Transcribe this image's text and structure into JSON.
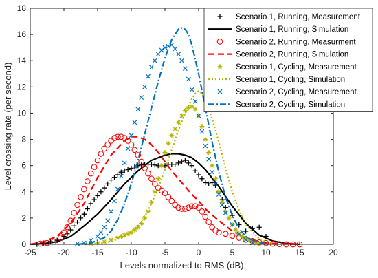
{
  "chart_data": {
    "type": "line",
    "xlabel": "Levels normalized to RMS (dB)",
    "ylabel": "Level crossing rate (per second)",
    "xlim": [
      -25,
      20
    ],
    "ylim": [
      0,
      18
    ],
    "xticks": [
      -25,
      -20,
      -15,
      -10,
      -5,
      0,
      5,
      10,
      15,
      20
    ],
    "yticks": [
      0,
      2,
      4,
      6,
      8,
      10,
      12,
      14,
      16,
      18
    ],
    "grid": false,
    "legend_position": "top-right",
    "series": [
      {
        "name": "Scenario 1, Running, Measurement",
        "style": "markers",
        "marker": "plus",
        "color": "#000000",
        "x": [
          -24,
          -23,
          -22,
          -21,
          -20,
          -19.5,
          -19,
          -18.5,
          -18,
          -17.5,
          -17,
          -16.5,
          -16,
          -15.5,
          -15,
          -14.5,
          -14,
          -13.5,
          -13,
          -12.5,
          -12,
          -11.5,
          -11,
          -10.5,
          -10,
          -9.5,
          -9,
          -8.5,
          -8,
          -7.5,
          -7,
          -6.5,
          -6,
          -5.5,
          -5,
          -4.5,
          -4,
          -3.5,
          -3,
          -2.5,
          -2,
          -1.5,
          -1,
          -0.5,
          0,
          0.5,
          1,
          1.5,
          2,
          2.5,
          3,
          3.5,
          4,
          5,
          6,
          7,
          8,
          9,
          10
        ],
        "y": [
          0,
          0.1,
          0.2,
          0.3,
          0.6,
          0.8,
          1.1,
          1.4,
          1.7,
          2,
          2.3,
          2.7,
          3.1,
          3.4,
          3.7,
          4,
          4.3,
          4.6,
          4.9,
          5.1,
          5.3,
          5.5,
          5.6,
          5.7,
          5.8,
          5.9,
          6,
          6.05,
          6.1,
          6.1,
          6.1,
          6.05,
          6,
          6,
          6,
          6.1,
          6.1,
          6.1,
          6.2,
          6.3,
          6.4,
          6.2,
          6,
          5.6,
          5.3,
          5,
          4.7,
          4.6,
          4.7,
          4.5,
          4,
          3.4,
          2.8,
          2.2,
          1.5,
          1,
          1.2,
          1.3,
          0.6
        ]
      },
      {
        "name": "Scenario 1, Running, Simulation",
        "style": "line",
        "dash": "solid",
        "color": "#000000",
        "x": [
          -25,
          -23,
          -21,
          -19,
          -17,
          -15,
          -13,
          -11,
          -9,
          -7,
          -5,
          -4,
          -3,
          -2,
          -1,
          0,
          1,
          3,
          5,
          7,
          9,
          11,
          13,
          15
        ],
        "y": [
          0,
          0.05,
          0.2,
          0.6,
          1.4,
          2.3,
          3.4,
          4.6,
          5.6,
          6.4,
          6.8,
          6.9,
          6.9,
          6.8,
          6.6,
          6.2,
          5.7,
          4.4,
          2.9,
          1.6,
          0.7,
          0.25,
          0.07,
          0
        ]
      },
      {
        "name": "Scenario 2, Running, Measurment",
        "style": "markers",
        "marker": "circle",
        "color": "#ff0000",
        "x": [
          -23.5,
          -22.5,
          -21.5,
          -20.5,
          -20,
          -19.5,
          -19,
          -18.5,
          -18,
          -17.5,
          -17,
          -16.5,
          -16,
          -15.5,
          -15,
          -14.5,
          -14,
          -13.5,
          -13,
          -12.5,
          -12,
          -11.5,
          -11,
          -10.5,
          -10,
          -9.5,
          -9,
          -8.5,
          -8,
          -7.5,
          -7,
          -6.5,
          -6,
          -5.5,
          -5,
          -4.5,
          -4,
          -3.5,
          -3,
          -2.5,
          -2,
          -1.5,
          -1,
          -0.5,
          0,
          0.5,
          1,
          1.5,
          2,
          2.5,
          3,
          4,
          5,
          6,
          7,
          8,
          9,
          10,
          11,
          12,
          13,
          14,
          15
        ],
        "y": [
          0.05,
          0.1,
          0.2,
          0.5,
          0.9,
          1.3,
          1.8,
          2.4,
          3,
          3.6,
          4.2,
          4.8,
          5.4,
          5.9,
          6.4,
          6.9,
          7.3,
          7.6,
          7.9,
          8.1,
          8.2,
          8.2,
          8.1,
          7.9,
          7.6,
          7.2,
          6.8,
          6.3,
          5.8,
          5.4,
          5,
          4.6,
          4.3,
          4.1,
          3.9,
          3.6,
          3.3,
          3,
          2.8,
          2.7,
          2.7,
          2.8,
          2.9,
          2.9,
          2.8,
          2.5,
          2.1,
          1.7,
          1.3,
          1.05,
          0.9,
          0.8,
          0.65,
          0.5,
          0.35,
          0.25,
          0.15,
          0.1,
          0.05,
          0.02,
          0,
          0,
          0
        ]
      },
      {
        "name": "Scenario 2, Running, Simulation",
        "style": "line",
        "dash": "dashed",
        "color": "#ff0000",
        "x": [
          -25,
          -23,
          -21,
          -19,
          -17,
          -15,
          -13,
          -11,
          -10,
          -9,
          -8,
          -7,
          -6,
          -5,
          -4,
          -3,
          -2,
          -1,
          0,
          1,
          3,
          5,
          7,
          9,
          11,
          13,
          15
        ],
        "y": [
          0,
          0.2,
          0.6,
          1.6,
          3.1,
          5.1,
          6.8,
          7.9,
          8.2,
          8.2,
          8,
          7.6,
          7,
          6.3,
          5.6,
          5,
          4.4,
          3.8,
          3.3,
          2.7,
          1.8,
          1,
          0.5,
          0.2,
          0.07,
          0.02,
          0
        ]
      },
      {
        "name": "Scenario 1, Cycling, Measurement",
        "style": "markers",
        "marker": "asterisk",
        "color": "#b5b500",
        "x": [
          -16,
          -15,
          -14,
          -13,
          -12,
          -11.5,
          -11,
          -10.5,
          -10,
          -9.5,
          -9,
          -8.5,
          -8,
          -7.5,
          -7,
          -6.5,
          -6,
          -5.5,
          -5,
          -4.5,
          -4,
          -3.5,
          -3,
          -2.5,
          -2,
          -1.5,
          -1,
          -0.5,
          0,
          0.5,
          1,
          1.5,
          2,
          2.5,
          3,
          3.5,
          4,
          4.5,
          5,
          5.5,
          6,
          6.5,
          7,
          7.5,
          8,
          8.5,
          9
        ],
        "y": [
          0.05,
          0.1,
          0.2,
          0.35,
          0.5,
          0.6,
          0.7,
          0.8,
          0.9,
          1.1,
          1.3,
          1.6,
          2,
          2.5,
          3.2,
          4,
          5,
          6,
          7,
          7.7,
          8.3,
          8.8,
          9.3,
          9.8,
          10.2,
          10.4,
          10.5,
          10.3,
          9.8,
          9,
          8,
          7,
          6,
          5,
          4,
          3.2,
          2.5,
          2,
          1.5,
          1.1,
          0.8,
          0.6,
          0.45,
          0.3,
          0.2,
          0.1,
          0.05
        ]
      },
      {
        "name": "Scenario 1, Cycling, Simulation",
        "style": "line",
        "dash": "dotted",
        "color": "#b5b500",
        "x": [
          -17,
          -15,
          -13,
          -11,
          -9,
          -8,
          -7,
          -6,
          -5,
          -4,
          -3,
          -2,
          -1,
          -0.5,
          0,
          0.5,
          1,
          2,
          3,
          4,
          5,
          6,
          7,
          9,
          11
        ],
        "y": [
          0,
          0.05,
          0.2,
          0.6,
          1.4,
          2.1,
          3.1,
          4.3,
          5.7,
          7.2,
          8.7,
          10,
          11.1,
          11.5,
          11.7,
          11.5,
          11,
          9.6,
          7.8,
          5.8,
          4,
          2.6,
          1.5,
          0.4,
          0.05
        ]
      },
      {
        "name": "Scenario 2, Cycling, Measurement",
        "style": "markers",
        "marker": "x",
        "color": "#0072bd",
        "x": [
          -18,
          -17,
          -16,
          -15,
          -14.5,
          -14,
          -13.5,
          -13,
          -12.5,
          -12,
          -11.5,
          -11,
          -10.5,
          -10,
          -9.5,
          -9,
          -8.5,
          -8,
          -7.5,
          -7,
          -6.5,
          -6,
          -5.5,
          -5,
          -4.5,
          -4,
          -3.5,
          -3,
          -2.5,
          -2,
          -1.5,
          -1,
          -0.5,
          0,
          0.5,
          1,
          1.5,
          2,
          2.5,
          3,
          3.5,
          4,
          5,
          6,
          7,
          8
        ],
        "y": [
          0.05,
          0.1,
          0.3,
          0.6,
          0.9,
          1.3,
          1.8,
          2.5,
          3.3,
          4.2,
          5.2,
          6.2,
          7.3,
          8.3,
          9.3,
          10.3,
          11.2,
          12,
          12.8,
          13.5,
          14,
          14.5,
          14.8,
          15,
          15.1,
          15.2,
          14.9,
          14.5,
          14,
          13.4,
          12.6,
          11.8,
          10.9,
          9.8,
          8.6,
          7.5,
          6.5,
          5.5,
          4.6,
          3.8,
          3,
          2.4,
          1.5,
          0.8,
          0.35,
          0.1
        ]
      },
      {
        "name": "Scenario 2, Cycling, Simulation",
        "style": "line",
        "dash": "dashdot",
        "color": "#0072bd",
        "x": [
          -18,
          -16,
          -14,
          -13,
          -12,
          -11,
          -10,
          -9,
          -8,
          -7,
          -6,
          -5,
          -4,
          -3,
          -2.5,
          -2,
          -1.5,
          -1,
          0,
          1,
          2,
          3,
          4,
          5,
          6,
          7,
          8,
          10
        ],
        "y": [
          0,
          0.1,
          0.5,
          1,
          1.9,
          3.1,
          4.6,
          6.4,
          8.4,
          10.4,
          12.4,
          14.2,
          15.6,
          16.4,
          16.5,
          16.4,
          16,
          15.2,
          13,
          10.4,
          7.8,
          5.5,
          3.6,
          2.2,
          1.2,
          0.6,
          0.3,
          0
        ]
      }
    ]
  }
}
